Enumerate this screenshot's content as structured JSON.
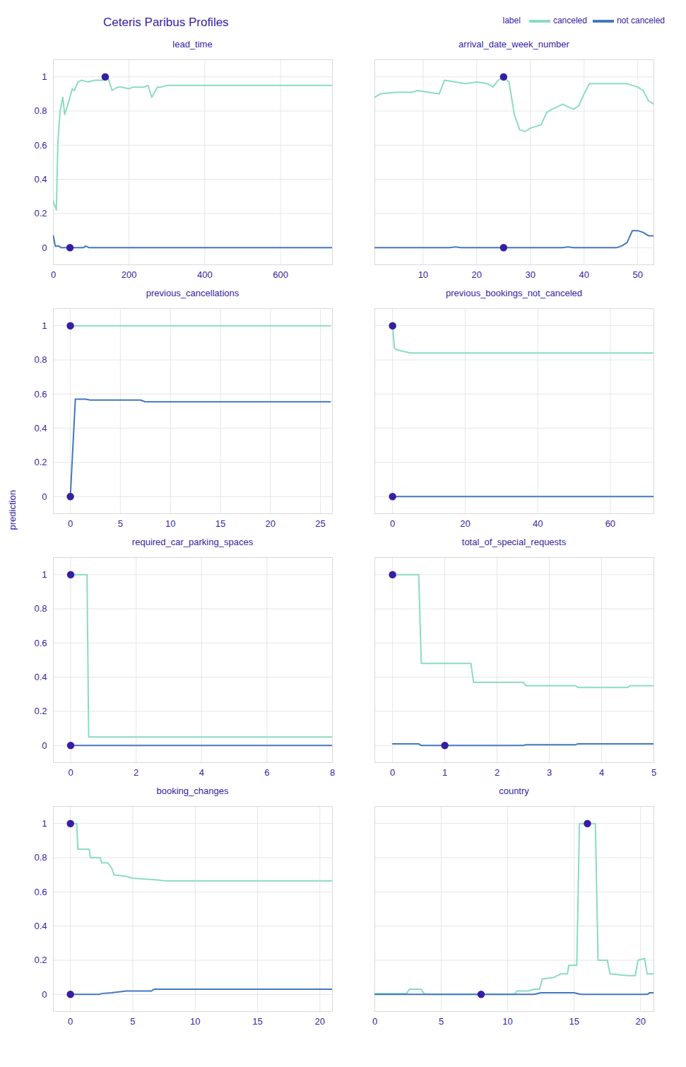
{
  "chart_data": {
    "type": "line",
    "title": "Ceteris Paribus Profiles",
    "ylabel": "prediction",
    "legend_title": "label",
    "legend": "top-right",
    "grid": true,
    "panels": [
      {
        "title": "lead_time",
        "xlim": [
          0,
          737
        ],
        "xticks": [
          0,
          200,
          400,
          600
        ],
        "ylim": [
          -0.1,
          1.1
        ],
        "yticks": [
          0,
          0.2,
          0.4,
          0.6,
          0.8,
          1
        ],
        "series": [
          {
            "name": "canceled",
            "color": "#8bdcbe",
            "x": [
              0,
              5,
              8,
              12,
              18,
              25,
              30,
              40,
              50,
              55,
              65,
              75,
              90,
              110,
              130,
              137,
              145,
              155,
              170,
              180,
              200,
              210,
              240,
              250,
              260,
              275,
              285,
              300,
              400,
              737
            ],
            "values": [
              0.27,
              0.24,
              0.22,
              0.62,
              0.8,
              0.88,
              0.78,
              0.85,
              0.93,
              0.92,
              0.97,
              0.98,
              0.97,
              0.98,
              0.98,
              1,
              0.99,
              0.92,
              0.94,
              0.94,
              0.93,
              0.94,
              0.94,
              0.95,
              0.88,
              0.94,
              0.94,
              0.95,
              0.95,
              0.95
            ],
            "observation": {
              "x": 137,
              "y": 1
            }
          },
          {
            "name": "not canceled",
            "color": "#4378bf",
            "x": [
              0,
              5,
              15,
              20,
              80,
              85,
              95,
              737
            ],
            "values": [
              0.07,
              0.01,
              0.01,
              0,
              0,
              0.01,
              0,
              0
            ],
            "observation": {
              "x": 44,
              "y": 0
            }
          }
        ]
      },
      {
        "title": "arrival_date_week_number",
        "xlim": [
          1,
          53
        ],
        "xticks": [
          10,
          20,
          30,
          40,
          50
        ],
        "ylim": [
          -0.1,
          1.1
        ],
        "yticks": [
          0,
          0.2,
          0.4,
          0.6,
          0.8,
          1
        ],
        "tick_labels": "x",
        "series": [
          {
            "name": "canceled",
            "color": "#8bdcbe",
            "x": [
              1,
              2,
              5,
              8,
              9,
              11,
              13,
              14,
              16,
              18,
              20,
              22,
              23,
              24,
              25,
              26,
              27,
              28,
              29,
              30,
              32,
              33,
              34,
              36,
              38,
              39,
              40,
              41,
              45,
              46,
              48,
              50,
              51,
              52,
              53
            ],
            "values": [
              0.88,
              0.9,
              0.91,
              0.91,
              0.92,
              0.91,
              0.9,
              0.98,
              0.97,
              0.96,
              0.97,
              0.96,
              0.94,
              0.98,
              1,
              0.97,
              0.78,
              0.69,
              0.68,
              0.7,
              0.72,
              0.79,
              0.81,
              0.84,
              0.81,
              0.83,
              0.9,
              0.96,
              0.96,
              0.96,
              0.96,
              0.94,
              0.92,
              0.86,
              0.84
            ],
            "observation": {
              "x": 25,
              "y": 1
            }
          },
          {
            "name": "not canceled",
            "color": "#4378bf",
            "x": [
              1,
              15,
              16,
              17,
              36,
              37,
              38,
              46,
              47,
              48,
              49,
              50,
              51,
              52,
              53
            ],
            "values": [
              0,
              0,
              0.005,
              0,
              0,
              0.005,
              0,
              0,
              0.01,
              0.03,
              0.1,
              0.1,
              0.09,
              0.07,
              0.07
            ],
            "observation": {
              "x": 25,
              "y": 0
            }
          }
        ]
      },
      {
        "title": "previous_cancellations",
        "xlim": [
          -1.7,
          26.2
        ],
        "xticks": [
          0,
          5,
          10,
          15,
          20,
          25
        ],
        "ylim": [
          -0.1,
          1.1
        ],
        "yticks": [
          0,
          0.2,
          0.4,
          0.6,
          0.8,
          1
        ],
        "series": [
          {
            "name": "canceled",
            "color": "#8bdcbe",
            "x": [
              0,
              26
            ],
            "values": [
              1,
              1
            ],
            "observation": {
              "x": 0,
              "y": 1
            }
          },
          {
            "name": "not canceled",
            "color": "#4378bf",
            "x": [
              0,
              0.5,
              1.5,
              2,
              7,
              7.5,
              26
            ],
            "values": [
              0,
              0.57,
              0.57,
              0.565,
              0.565,
              0.555,
              0.555
            ],
            "observation": {
              "x": 0,
              "y": 0
            }
          }
        ]
      },
      {
        "title": "previous_bookings_not_canceled",
        "xlim": [
          -4.9,
          72
        ],
        "xticks": [
          0,
          20,
          40,
          60
        ],
        "ylim": [
          -0.1,
          1.1
        ],
        "yticks": [
          0,
          0.2,
          0.4,
          0.6,
          0.8,
          1
        ],
        "tick_labels": "x",
        "series": [
          {
            "name": "canceled",
            "color": "#8bdcbe",
            "x": [
              0,
              0.5,
              1,
              3,
              5,
              72
            ],
            "values": [
              1,
              0.87,
              0.86,
              0.85,
              0.84,
              0.84
            ],
            "observation": {
              "x": 0,
              "y": 1
            }
          },
          {
            "name": "not canceled",
            "color": "#4378bf",
            "x": [
              0,
              72
            ],
            "values": [
              0,
              0
            ],
            "observation": {
              "x": 0,
              "y": 0
            }
          }
        ]
      },
      {
        "title": "required_car_parking_spaces",
        "xlim": [
          -0.53,
          8
        ],
        "xticks": [
          0,
          2,
          4,
          6,
          8
        ],
        "ylim": [
          -0.1,
          1.1
        ],
        "yticks": [
          0,
          0.2,
          0.4,
          0.6,
          0.8,
          1
        ],
        "series": [
          {
            "name": "canceled",
            "color": "#8bdcbe",
            "x": [
              0,
              0.5,
              0.55,
              8
            ],
            "values": [
              1,
              1,
              0.05,
              0.05
            ],
            "observation": {
              "x": 0,
              "y": 1
            }
          },
          {
            "name": "not canceled",
            "color": "#4378bf",
            "x": [
              0,
              8
            ],
            "values": [
              0,
              0
            ],
            "observation": {
              "x": 0,
              "y": 0
            }
          }
        ]
      },
      {
        "title": "total_of_special_requests",
        "xlim": [
          -0.34,
          5
        ],
        "xticks": [
          0,
          1,
          2,
          3,
          4,
          5
        ],
        "ylim": [
          -0.1,
          1.1
        ],
        "yticks": [
          0,
          0.2,
          0.4,
          0.6,
          0.8,
          1
        ],
        "tick_labels": "x",
        "series": [
          {
            "name": "canceled",
            "color": "#8bdcbe",
            "x": [
              0,
              0.5,
              0.55,
              1.5,
              1.55,
              2.5,
              2.55,
              3.5,
              3.55,
              4.5,
              4.55,
              5
            ],
            "values": [
              1,
              1,
              0.48,
              0.48,
              0.37,
              0.37,
              0.35,
              0.35,
              0.34,
              0.34,
              0.35,
              0.35
            ],
            "observation": {
              "x": 0,
              "y": 1
            }
          },
          {
            "name": "not canceled",
            "color": "#4378bf",
            "x": [
              0,
              0.5,
              0.55,
              2.5,
              2.55,
              3.5,
              3.55,
              5
            ],
            "values": [
              0.01,
              0.01,
              0,
              0,
              0.005,
              0.005,
              0.01,
              0.01
            ],
            "observation": {
              "x": 1,
              "y": 0
            }
          }
        ]
      },
      {
        "title": "booking_changes",
        "xlim": [
          -1.37,
          21
        ],
        "xticks": [
          0,
          5,
          10,
          15,
          20
        ],
        "ylim": [
          -0.1,
          1.1
        ],
        "yticks": [
          0,
          0.2,
          0.4,
          0.6,
          0.8,
          1
        ],
        "series": [
          {
            "name": "canceled",
            "color": "#8bdcbe",
            "x": [
              0,
              0.5,
              0.6,
              1.5,
              1.6,
              2.4,
              2.5,
              3,
              3.3,
              3.5,
              4.5,
              5,
              7,
              7.5,
              21
            ],
            "values": [
              1,
              1,
              0.85,
              0.85,
              0.8,
              0.8,
              0.77,
              0.77,
              0.74,
              0.7,
              0.69,
              0.68,
              0.67,
              0.665,
              0.665
            ],
            "observation": {
              "x": 0,
              "y": 1
            }
          },
          {
            "name": "not canceled",
            "color": "#4378bf",
            "x": [
              0,
              2.3,
              2.5,
              3.3,
              4.5,
              6.5,
              6.7,
              21
            ],
            "values": [
              0,
              0,
              0.005,
              0.01,
              0.02,
              0.02,
              0.03,
              0.03
            ],
            "observation": {
              "x": 0,
              "y": 0
            }
          }
        ]
      },
      {
        "title": "country",
        "xlim": [
          0,
          21
        ],
        "xticks": [
          0,
          5,
          10,
          15,
          20
        ],
        "ylim": [
          -0.1,
          1.1
        ],
        "yticks": [
          0,
          0.2,
          0.4,
          0.6,
          0.8,
          1
        ],
        "tick_labels": "x",
        "series": [
          {
            "name": "canceled",
            "color": "#8bdcbe",
            "x": [
              0,
              2.4,
              2.6,
              3.5,
              3.7,
              4,
              10.5,
              10.7,
              11.5,
              12,
              12.4,
              12.6,
              13.5,
              14,
              14.5,
              14.6,
              15.2,
              15.4,
              16.6,
              16.8,
              17.5,
              17.7,
              19,
              19.6,
              19.8,
              20.3,
              20.5,
              21
            ],
            "values": [
              0.005,
              0.005,
              0.03,
              0.03,
              0.005,
              0,
              0,
              0.02,
              0.02,
              0.03,
              0.03,
              0.09,
              0.1,
              0.12,
              0.12,
              0.17,
              0.17,
              1,
              1,
              0.2,
              0.2,
              0.12,
              0.11,
              0.11,
              0.2,
              0.21,
              0.12,
              0.12
            ],
            "observation": {
              "x": 16,
              "y": 1
            }
          },
          {
            "name": "not canceled",
            "color": "#4378bf",
            "x": [
              0,
              12,
              12.5,
              15,
              15.5,
              20.5,
              20.7,
              21
            ],
            "values": [
              0,
              0,
              0.01,
              0.01,
              0,
              0,
              0.01,
              0.01
            ],
            "observation": {
              "x": 8,
              "y": 0
            }
          }
        ]
      }
    ]
  }
}
